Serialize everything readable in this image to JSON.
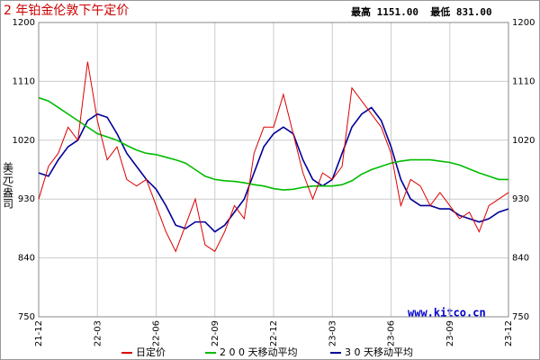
{
  "chart_data": {
    "type": "line",
    "title": "2 年铂金伦敦下午定价",
    "stats": "最高 1151.00  最低 831.00",
    "y_label": "美元/盎司",
    "watermark": "www.kitco.cn",
    "categories": [
      "21-12",
      null,
      null,
      null,
      null,
      null,
      "22-03",
      null,
      null,
      null,
      null,
      null,
      "22-06",
      null,
      null,
      null,
      null,
      null,
      "22-09",
      null,
      null,
      null,
      null,
      null,
      "22-12",
      null,
      null,
      null,
      null,
      null,
      "23-03",
      null,
      null,
      null,
      null,
      null,
      "23-06",
      null,
      null,
      null,
      null,
      null,
      "23-09",
      null,
      null,
      null,
      null,
      null,
      "23-12"
    ],
    "series": [
      {
        "name": "日定价",
        "color": "#dd0000",
        "values": [
          930,
          980,
          1000,
          1040,
          1020,
          1140,
          1050,
          990,
          1010,
          960,
          950,
          960,
          920,
          880,
          850,
          890,
          930,
          860,
          850,
          880,
          920,
          900,
          1000,
          1040,
          1040,
          1090,
          1030,
          970,
          930,
          970,
          960,
          980,
          1100,
          1080,
          1060,
          1040,
          1000,
          920,
          960,
          950,
          920,
          940,
          920,
          900,
          910,
          880,
          920,
          930,
          940
        ]
      },
      {
        "name": "2 0 0 天移动平均",
        "color": "#00bb00",
        "values": [
          1085,
          1080,
          1070,
          1060,
          1050,
          1040,
          1030,
          1025,
          1020,
          1012,
          1005,
          1000,
          998,
          994,
          990,
          985,
          975,
          965,
          960,
          958,
          957,
          955,
          952,
          950,
          946,
          944,
          945,
          948,
          950,
          950,
          950,
          952,
          958,
          968,
          975,
          980,
          985,
          988,
          990,
          990,
          990,
          988,
          986,
          982,
          976,
          970,
          965,
          960,
          960
        ]
      },
      {
        "name": "3 0 天移动平均",
        "color": "#000099",
        "values": [
          970,
          965,
          990,
          1010,
          1020,
          1050,
          1060,
          1055,
          1030,
          1000,
          980,
          960,
          945,
          920,
          890,
          885,
          895,
          895,
          880,
          890,
          910,
          930,
          970,
          1010,
          1030,
          1040,
          1030,
          990,
          960,
          950,
          960,
          1000,
          1040,
          1060,
          1070,
          1050,
          1010,
          960,
          930,
          920,
          920,
          915,
          915,
          905,
          900,
          895,
          900,
          910,
          915
        ]
      }
    ],
    "ylim": [
      750,
      1200
    ],
    "yticks": [
      750,
      840,
      930,
      1020,
      1110,
      1200
    ],
    "grid": true
  }
}
